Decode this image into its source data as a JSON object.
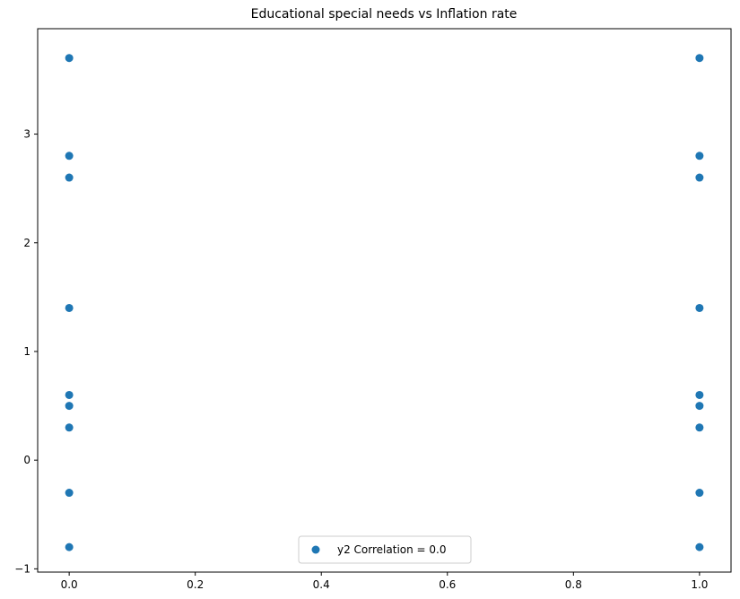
{
  "chart_data": {
    "type": "scatter",
    "title": "Educational special needs vs Inflation rate",
    "xlabel": "",
    "ylabel": "",
    "xlim": [
      -0.05,
      1.05
    ],
    "ylim": [
      -1.03,
      3.97
    ],
    "xticks": [
      0.0,
      0.2,
      0.4,
      0.6,
      0.8,
      1.0
    ],
    "xtick_labels": [
      "0.0",
      "0.2",
      "0.4",
      "0.6",
      "0.8",
      "1.0"
    ],
    "yticks": [
      -1,
      0,
      1,
      2,
      3
    ],
    "ytick_labels": [
      "−1",
      "0",
      "1",
      "2",
      "3"
    ],
    "grid": false,
    "legend_position": "bottom-center",
    "marker_color": "#1f77b4",
    "series": [
      {
        "name": "y2 Correlation = 0.0",
        "points": [
          {
            "x": 0,
            "y": 3.7
          },
          {
            "x": 0,
            "y": 2.8
          },
          {
            "x": 0,
            "y": 2.6
          },
          {
            "x": 0,
            "y": 1.4
          },
          {
            "x": 0,
            "y": 0.6
          },
          {
            "x": 0,
            "y": 0.5
          },
          {
            "x": 0,
            "y": 0.3
          },
          {
            "x": 0,
            "y": -0.3
          },
          {
            "x": 0,
            "y": -0.8
          },
          {
            "x": 1,
            "y": 3.7
          },
          {
            "x": 1,
            "y": 2.8
          },
          {
            "x": 1,
            "y": 2.6
          },
          {
            "x": 1,
            "y": 1.4
          },
          {
            "x": 1,
            "y": 0.6
          },
          {
            "x": 1,
            "y": 0.5
          },
          {
            "x": 1,
            "y": 0.3
          },
          {
            "x": 1,
            "y": -0.3
          },
          {
            "x": 1,
            "y": -0.8
          }
        ]
      }
    ]
  }
}
